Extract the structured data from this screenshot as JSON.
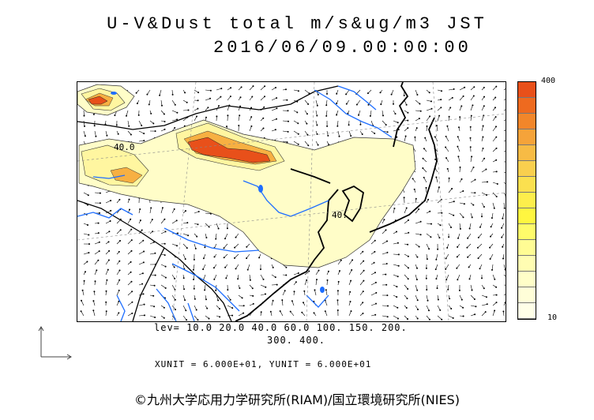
{
  "title": {
    "line1": "U-V&Dust total m/s&ug/m3 JST",
    "line2": "2016/06/09.00:00:00"
  },
  "legend": {
    "top_label": "400",
    "bottom_label": "10",
    "colors": [
      "#e8501a",
      "#ee6a1f",
      "#f2862a",
      "#f5a33a",
      "#f7bb45",
      "#f9cf4e",
      "#fbe04f",
      "#fdee4c",
      "#fff640",
      "#fffb6a",
      "#fffc94",
      "#fffdb2",
      "#fffec8",
      "#fffed8",
      "#ffffe8"
    ]
  },
  "map_labels": {
    "contour_a": "40.0",
    "contour_b": "40."
  },
  "levels": {
    "line1": "lev= 10.0 20.0 40.0 60.0 100. 150. 200.",
    "line2": "300. 400."
  },
  "units_line": "XUNIT = 6.000E+01, YUNIT = 6.000E+01",
  "credit": "©九州大学応用力学研究所(RIAM)/国立環境研究所(NIES)"
}
